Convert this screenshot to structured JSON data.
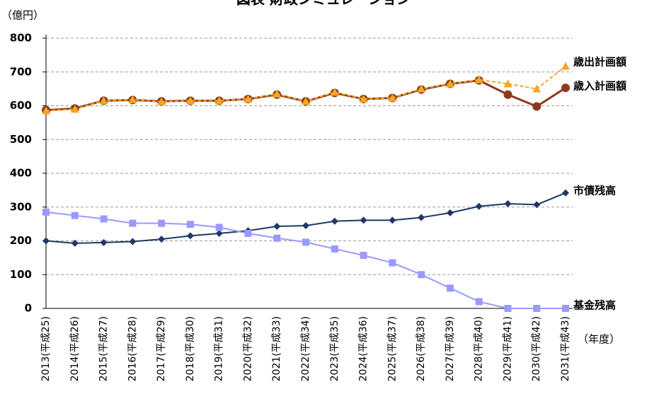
{
  "chart_data": {
    "type": "line",
    "title": "図表 財政シミュレーション",
    "y_axis_label": "（億円）",
    "x_axis_label": "（年度）",
    "categories": [
      "2013(平成25)",
      "2014(平成26)",
      "2015(平成27)",
      "2016(平成28)",
      "2017(平成29)",
      "2018(平成30)",
      "2019(平成31)",
      "2020(平成32)",
      "2021(平成33)",
      "2022(平成34)",
      "2023(平成35)",
      "2024(平成36)",
      "2025(平成37)",
      "2026(平成38)",
      "2027(平成39)",
      "2028(平成40)",
      "2029(平成41)",
      "2030(平成42)",
      "2031(平成43)"
    ],
    "series": [
      {
        "name": "歳出計画額",
        "color": "#f5a623",
        "marker": "triangle",
        "values": [
          585,
          590,
          615,
          618,
          612,
          615,
          615,
          620,
          635,
          613,
          640,
          620,
          623,
          650,
          665,
          677,
          665,
          650,
          717
        ]
      },
      {
        "name": "歳入計画額",
        "color": "#8b3a1a",
        "marker": "circle",
        "values": [
          587,
          592,
          615,
          617,
          613,
          615,
          615,
          620,
          633,
          613,
          638,
          620,
          623,
          648,
          665,
          675,
          633,
          598,
          653
        ]
      },
      {
        "name": "市債残高",
        "color": "#1f3864",
        "marker": "diamond",
        "values": [
          200,
          193,
          195,
          198,
          205,
          215,
          222,
          230,
          243,
          245,
          258,
          261,
          261,
          269,
          283,
          302,
          310,
          307,
          342
        ]
      },
      {
        "name": "基金残高",
        "color": "#9999ff",
        "marker": "square",
        "values": [
          285,
          275,
          265,
          252,
          252,
          249,
          240,
          222,
          208,
          196,
          176,
          157,
          135,
          100,
          60,
          20,
          0,
          0,
          0
        ]
      }
    ],
    "ylim": [
      0,
      800
    ],
    "yticks": [
      0,
      100,
      200,
      300,
      400,
      500,
      600,
      700,
      800
    ],
    "grid": true
  }
}
